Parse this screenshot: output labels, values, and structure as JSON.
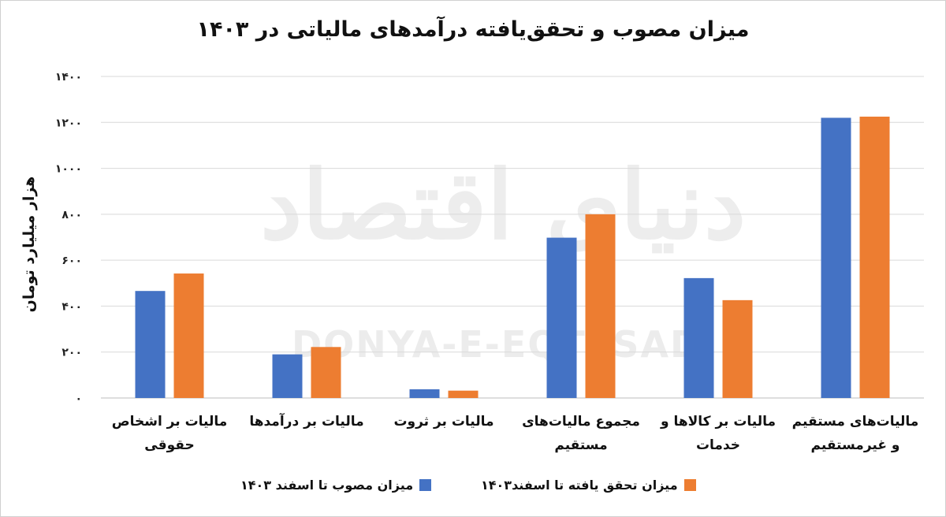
{
  "chart_data": {
    "type": "bar",
    "title": "میزان مصوب و تحقق‌یافته درآمدهای مالیاتی در ۱۴۰۳",
    "ylabel": "هزار میلیارد تومان",
    "xlabel": "",
    "ylim": [
      0,
      1400
    ],
    "yticks": [
      0,
      200,
      400,
      600,
      800,
      1000,
      1200,
      1400
    ],
    "ytick_labels": [
      "۰",
      "۲۰۰",
      "۴۰۰",
      "۶۰۰",
      "۸۰۰",
      "۱۰۰۰",
      "۱۲۰۰",
      "۱۴۰۰"
    ],
    "grid": true,
    "legend_position": "bottom",
    "categories": [
      "مالیات بر اشخاص حقوقی",
      "مالیات بر درآمدها",
      "مالیات بر ثروت",
      "مجموع مالیات‌های مستقیم",
      "مالیات بر کالاها و خدمات",
      "مالیات‌های مستقیم و غیرمستقیم"
    ],
    "series": [
      {
        "name": "میزان مصوب تا اسفند ۱۴۰۳",
        "color": "#4472c4",
        "values": [
          466,
          190,
          38,
          698,
          522,
          1220
        ]
      },
      {
        "name": "میزان تحقق یافته تا اسفند۱۴۰۳",
        "color": "#ed7d31",
        "values": [
          542,
          222,
          32,
          800,
          426,
          1225
        ]
      }
    ]
  },
  "watermark": {
    "latin": "DONYA-E-EQTESAD",
    "persian": "دنیای اقتصاد"
  }
}
